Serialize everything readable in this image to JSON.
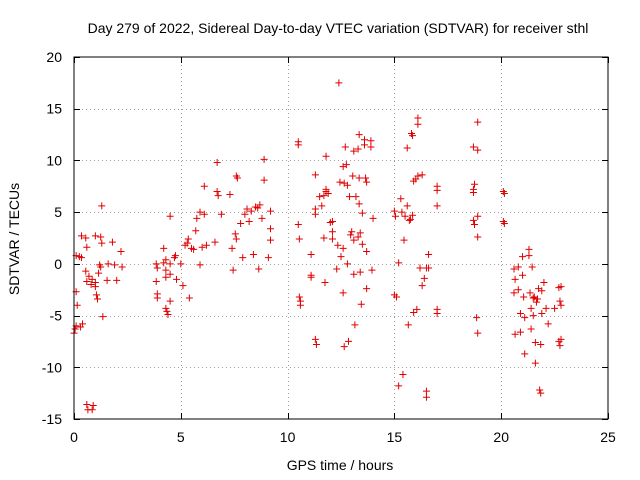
{
  "chart_data": {
    "type": "scatter",
    "title": "Day 279 of 2022, Sidereal Day-to-day VTEC variation (SDTVAR) for receiver sthl",
    "xlabel": "GPS time / hours",
    "ylabel": "SDTVAR / TECUs",
    "xlim": [
      0,
      25
    ],
    "ylim": [
      -15,
      20
    ],
    "xticks": [
      0,
      5,
      10,
      15,
      20,
      25
    ],
    "yticks": [
      -15,
      -10,
      -5,
      0,
      5,
      10,
      15,
      20
    ],
    "xtick_labels": [
      "0",
      "5",
      "10",
      "15",
      "20",
      "25"
    ],
    "ytick_labels": [
      "-15",
      "-10",
      "-5",
      "0",
      "5",
      "10",
      "15",
      "20"
    ],
    "grid": true,
    "marker": "plus",
    "color": "#e00000",
    "series": [
      {
        "name": "sthl",
        "points": [
          [
            0.0,
            -6.7
          ],
          [
            0.05,
            -6.3
          ],
          [
            0.1,
            -6.0
          ],
          [
            0.15,
            -4.0
          ],
          [
            0.1,
            -2.7
          ],
          [
            0.1,
            0.8
          ],
          [
            0.25,
            0.7
          ],
          [
            0.35,
            0.6
          ],
          [
            0.3,
            -6.1
          ],
          [
            0.4,
            -5.8
          ],
          [
            0.35,
            2.7
          ],
          [
            0.55,
            2.5
          ],
          [
            0.6,
            1.6
          ],
          [
            0.55,
            -0.7
          ],
          [
            0.6,
            -1.7
          ],
          [
            0.7,
            -1.2
          ],
          [
            0.8,
            -2.0
          ],
          [
            0.85,
            -1.5
          ],
          [
            0.6,
            -13.6
          ],
          [
            0.65,
            -14.1
          ],
          [
            0.9,
            -13.7
          ],
          [
            0.85,
            -14.1
          ],
          [
            1.0,
            -2.2
          ],
          [
            1.05,
            -3.0
          ],
          [
            1.1,
            -3.4
          ],
          [
            1.0,
            -1.8
          ],
          [
            1.15,
            -0.9
          ],
          [
            1.2,
            -0.1
          ],
          [
            1.0,
            2.7
          ],
          [
            1.25,
            2.6
          ],
          [
            1.3,
            2.0
          ],
          [
            1.25,
            -0.3
          ],
          [
            1.35,
            -5.1
          ],
          [
            1.3,
            5.6
          ],
          [
            1.55,
            -1.6
          ],
          [
            1.6,
            0.0
          ],
          [
            1.8,
            2.1
          ],
          [
            1.9,
            -0.1
          ],
          [
            2.0,
            -1.6
          ],
          [
            2.2,
            1.2
          ],
          [
            2.25,
            -0.3
          ],
          [
            3.85,
            0.0
          ],
          [
            3.9,
            -0.4
          ],
          [
            3.85,
            -1.7
          ],
          [
            3.9,
            -2.9
          ],
          [
            3.9,
            -3.3
          ],
          [
            4.2,
            0.1
          ],
          [
            4.2,
            1.5
          ],
          [
            4.3,
            0.4
          ],
          [
            4.3,
            -0.6
          ],
          [
            4.3,
            -1.3
          ],
          [
            4.3,
            -4.3
          ],
          [
            4.35,
            -4.6
          ],
          [
            4.4,
            -4.9
          ],
          [
            4.5,
            -3.6
          ],
          [
            4.5,
            -1.0
          ],
          [
            4.5,
            0.0
          ],
          [
            4.5,
            4.6
          ],
          [
            4.7,
            0.6
          ],
          [
            4.75,
            0.8
          ],
          [
            4.8,
            -1.5
          ],
          [
            5.0,
            0.0
          ],
          [
            5.1,
            -2.1
          ],
          [
            5.2,
            1.8
          ],
          [
            5.3,
            2.0
          ],
          [
            5.35,
            2.4
          ],
          [
            5.4,
            -3.3
          ],
          [
            5.5,
            1.5
          ],
          [
            5.6,
            1.4
          ],
          [
            5.7,
            3.2
          ],
          [
            5.75,
            4.4
          ],
          [
            5.9,
            5.0
          ],
          [
            5.9,
            -0.1
          ],
          [
            6.0,
            1.6
          ],
          [
            6.1,
            7.5
          ],
          [
            6.1,
            4.8
          ],
          [
            6.2,
            1.8
          ],
          [
            6.6,
            2.1
          ],
          [
            6.7,
            9.8
          ],
          [
            6.7,
            7.0
          ],
          [
            6.75,
            6.6
          ],
          [
            6.9,
            4.8
          ],
          [
            7.3,
            6.7
          ],
          [
            7.4,
            1.5
          ],
          [
            7.45,
            -0.6
          ],
          [
            7.6,
            8.5
          ],
          [
            7.65,
            8.3
          ],
          [
            7.55,
            2.9
          ],
          [
            7.6,
            2.4
          ],
          [
            7.8,
            3.9
          ],
          [
            7.9,
            0.6
          ],
          [
            8.0,
            4.8
          ],
          [
            8.1,
            5.3
          ],
          [
            8.2,
            4.1
          ],
          [
            8.3,
            5.1
          ],
          [
            8.4,
            0.9
          ],
          [
            8.5,
            5.5
          ],
          [
            8.6,
            5.4
          ],
          [
            8.7,
            5.7
          ],
          [
            8.65,
            -0.5
          ],
          [
            8.8,
            4.4
          ],
          [
            8.9,
            10.1
          ],
          [
            8.9,
            8.1
          ],
          [
            9.1,
            0.6
          ],
          [
            9.2,
            2.3
          ],
          [
            9.2,
            5.1
          ],
          [
            9.2,
            3.4
          ],
          [
            10.5,
            11.8
          ],
          [
            10.5,
            11.5
          ],
          [
            10.5,
            3.8
          ],
          [
            10.55,
            2.4
          ],
          [
            10.55,
            -3.2
          ],
          [
            10.6,
            -3.6
          ],
          [
            10.6,
            -4.0
          ],
          [
            11.1,
            0.9
          ],
          [
            11.1,
            -1.1
          ],
          [
            11.1,
            -1.3
          ],
          [
            11.3,
            8.6
          ],
          [
            11.3,
            5.3
          ],
          [
            11.3,
            4.8
          ],
          [
            11.3,
            -7.3
          ],
          [
            11.35,
            -7.8
          ],
          [
            11.5,
            6.5
          ],
          [
            11.6,
            5.6
          ],
          [
            11.7,
            6.6
          ],
          [
            11.7,
            2.5
          ],
          [
            11.75,
            -1.8
          ],
          [
            11.8,
            10.4
          ],
          [
            11.8,
            7.2
          ],
          [
            11.8,
            7.0
          ],
          [
            11.9,
            6.8
          ],
          [
            12.0,
            4.0
          ],
          [
            12.1,
            3.1
          ],
          [
            12.1,
            2.4
          ],
          [
            12.1,
            4.1
          ],
          [
            12.3,
            -0.5
          ],
          [
            12.35,
            1.8
          ],
          [
            12.4,
            17.5
          ],
          [
            12.45,
            7.9
          ],
          [
            12.5,
            0.7
          ],
          [
            12.6,
            9.4
          ],
          [
            12.65,
            7.8
          ],
          [
            12.6,
            1.5
          ],
          [
            12.6,
            -2.8
          ],
          [
            12.65,
            -8.0
          ],
          [
            12.75,
            9.6
          ],
          [
            12.7,
            11.3
          ],
          [
            12.8,
            7.6
          ],
          [
            12.8,
            0.0
          ],
          [
            12.85,
            -7.5
          ],
          [
            12.9,
            6.5
          ],
          [
            12.95,
            2.8
          ],
          [
            13.0,
            3.1
          ],
          [
            13.05,
            8.5
          ],
          [
            13.1,
            10.9
          ],
          [
            13.1,
            2.3
          ],
          [
            13.1,
            -1.0
          ],
          [
            13.15,
            -5.9
          ],
          [
            13.2,
            6.5
          ],
          [
            13.3,
            2.6
          ],
          [
            13.3,
            11.1
          ],
          [
            13.35,
            12.5
          ],
          [
            13.35,
            8.3
          ],
          [
            13.35,
            5.8
          ],
          [
            13.4,
            3.0
          ],
          [
            13.4,
            -0.8
          ],
          [
            13.45,
            -3.9
          ],
          [
            13.5,
            4.9
          ],
          [
            13.5,
            1.9
          ],
          [
            13.6,
            12.0
          ],
          [
            13.6,
            11.5
          ],
          [
            13.65,
            8.3
          ],
          [
            13.7,
            7.9
          ],
          [
            13.7,
            1.2
          ],
          [
            13.7,
            -2.4
          ],
          [
            13.9,
            11.9
          ],
          [
            13.9,
            11.3
          ],
          [
            13.95,
            -0.6
          ],
          [
            14.0,
            4.4
          ],
          [
            15.0,
            5.1
          ],
          [
            15.05,
            4.6
          ],
          [
            15.0,
            -3.0
          ],
          [
            15.1,
            -3.2
          ],
          [
            15.2,
            0.1
          ],
          [
            15.2,
            -11.8
          ],
          [
            15.3,
            6.3
          ],
          [
            15.35,
            5.0
          ],
          [
            15.4,
            -10.7
          ],
          [
            15.45,
            2.3
          ],
          [
            15.5,
            4.6
          ],
          [
            15.6,
            11.2
          ],
          [
            15.6,
            5.6
          ],
          [
            15.65,
            -5.9
          ],
          [
            15.7,
            4.2
          ],
          [
            15.75,
            4.3
          ],
          [
            15.8,
            12.6
          ],
          [
            15.85,
            12.4
          ],
          [
            15.85,
            4.7
          ],
          [
            15.9,
            -4.7
          ],
          [
            15.9,
            8.0
          ],
          [
            16.0,
            8.2
          ],
          [
            16.05,
            -4.4
          ],
          [
            16.1,
            14.1
          ],
          [
            16.1,
            13.5
          ],
          [
            16.1,
            8.5
          ],
          [
            16.2,
            -0.4
          ],
          [
            16.3,
            8.6
          ],
          [
            16.3,
            -2.1
          ],
          [
            16.4,
            -1.4
          ],
          [
            16.5,
            -12.3
          ],
          [
            16.5,
            -12.9
          ],
          [
            16.6,
            0.9
          ],
          [
            16.6,
            -0.4
          ],
          [
            16.5,
            -0.4
          ],
          [
            17.0,
            7.5
          ],
          [
            17.0,
            7.1
          ],
          [
            17.0,
            5.6
          ],
          [
            17.0,
            -4.4
          ],
          [
            17.0,
            -4.8
          ],
          [
            18.7,
            11.3
          ],
          [
            18.75,
            7.7
          ],
          [
            18.7,
            7.2
          ],
          [
            18.7,
            6.9
          ],
          [
            18.7,
            4.2
          ],
          [
            18.75,
            3.8
          ],
          [
            18.9,
            13.7
          ],
          [
            18.9,
            11.0
          ],
          [
            18.9,
            4.6
          ],
          [
            18.9,
            2.6
          ],
          [
            18.85,
            -5.2
          ],
          [
            18.9,
            -6.7
          ],
          [
            20.1,
            7.0
          ],
          [
            20.15,
            6.8
          ],
          [
            20.1,
            4.1
          ],
          [
            20.15,
            3.9
          ],
          [
            20.6,
            -0.5
          ],
          [
            20.65,
            -1.5
          ],
          [
            20.6,
            -2.8
          ],
          [
            20.65,
            -6.8
          ],
          [
            20.8,
            -0.3
          ],
          [
            20.8,
            -2.5
          ],
          [
            20.9,
            -4.8
          ],
          [
            20.9,
            -6.6
          ],
          [
            21.0,
            0.7
          ],
          [
            21.0,
            -1.1
          ],
          [
            21.05,
            -3.2
          ],
          [
            21.1,
            -5.2
          ],
          [
            21.1,
            -8.7
          ],
          [
            21.3,
            1.4
          ],
          [
            21.3,
            0.8
          ],
          [
            21.35,
            -2.8
          ],
          [
            21.4,
            -4.3
          ],
          [
            21.4,
            -6.3
          ],
          [
            21.45,
            -0.3
          ],
          [
            21.5,
            -3.3
          ],
          [
            21.5,
            -5.0
          ],
          [
            21.55,
            -3.2
          ],
          [
            21.6,
            -7.6
          ],
          [
            21.6,
            -9.6
          ],
          [
            21.65,
            -3.7
          ],
          [
            21.7,
            -3.4
          ],
          [
            21.75,
            -2.4
          ],
          [
            21.8,
            -12.2
          ],
          [
            21.85,
            -12.5
          ],
          [
            21.85,
            -7.8
          ],
          [
            21.9,
            -2.6
          ],
          [
            21.9,
            -4.8
          ],
          [
            22.0,
            -1.8
          ],
          [
            22.1,
            -4.3
          ],
          [
            22.2,
            -5.8
          ],
          [
            22.5,
            -4.3
          ],
          [
            22.7,
            -2.3
          ],
          [
            22.7,
            -7.5
          ],
          [
            22.75,
            -3.6
          ],
          [
            22.75,
            -7.9
          ],
          [
            22.8,
            -4.0
          ],
          [
            22.8,
            -2.2
          ],
          [
            22.8,
            -7.3
          ]
        ]
      }
    ]
  }
}
